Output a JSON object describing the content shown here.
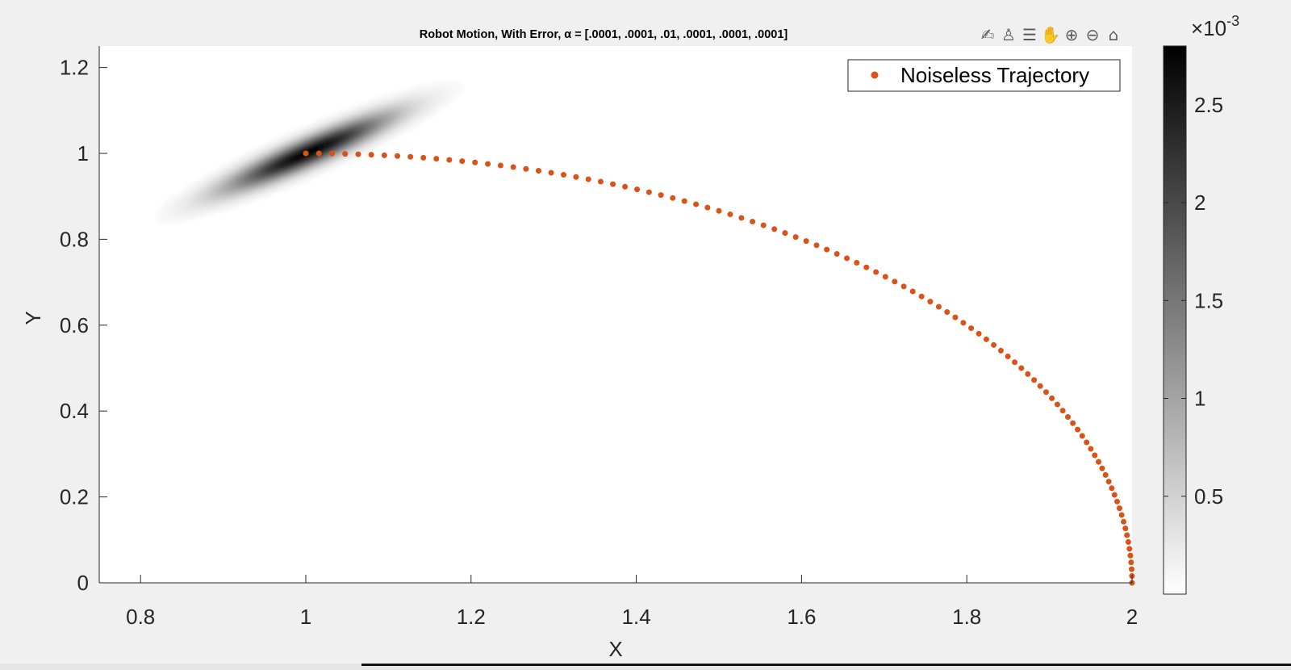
{
  "figure": {
    "toolbar": [
      {
        "name": "brush-icon",
        "glyph": "✍"
      },
      {
        "name": "data-tips-icon",
        "glyph": "♙"
      },
      {
        "name": "legend-toggle-icon",
        "glyph": "☰"
      },
      {
        "name": "pan-icon",
        "glyph": "✋"
      },
      {
        "name": "zoom-in-icon",
        "glyph": "⊕"
      },
      {
        "name": "zoom-out-icon",
        "glyph": "⊖"
      },
      {
        "name": "home-icon",
        "glyph": "⌂"
      }
    ]
  },
  "chart_data": {
    "type": "scatter",
    "title": "Robot Motion, With Error, α = [.0001, .0001, .01, .0001, .0001, .0001]",
    "xlabel": "X",
    "ylabel": "Y",
    "xlim": [
      0.75,
      2.0
    ],
    "ylim": [
      0,
      1.25
    ],
    "xticks": [
      "0.8",
      "1",
      "1.2",
      "1.4",
      "1.6",
      "1.8",
      "2"
    ],
    "xtick_values": [
      0.8,
      1.0,
      1.2,
      1.4,
      1.6,
      1.8,
      2.0
    ],
    "yticks": [
      "0",
      "0.2",
      "0.4",
      "0.6",
      "0.8",
      "1",
      "1.2"
    ],
    "ytick_values": [
      0,
      0.2,
      0.4,
      0.6,
      0.8,
      1.0,
      1.2
    ],
    "grid": false,
    "legend": {
      "location": "top-right",
      "entries": [
        "Noiseless Trajectory"
      ]
    },
    "series": [
      {
        "name": "Noiseless Trajectory",
        "color": "#d95319",
        "marker": "dot",
        "shape": "quarter-ellipse",
        "center": [
          1.0,
          0.0
        ],
        "radius_x": 1.0,
        "radius_y": 1.0,
        "angle_range_deg": [
          90,
          0
        ],
        "num_points": 100
      }
    ],
    "density": {
      "colormap": "gray-inverted",
      "peak": [
        1.0,
        1.0
      ],
      "major_axis_direction": [
        0.75,
        0.66
      ],
      "sigma_major": 0.088,
      "sigma_minor": 0.018,
      "max_value": 0.0028
    },
    "colorbar": {
      "exponent_label": "×10",
      "exponent": "-3",
      "range": [
        0,
        2.8
      ],
      "ticks": [
        "0.5",
        "1",
        "1.5",
        "2",
        "2.5"
      ],
      "tick_values": [
        0.5,
        1.0,
        1.5,
        2.0,
        2.5
      ],
      "colors": [
        "#ffffff",
        "#000000"
      ]
    }
  }
}
